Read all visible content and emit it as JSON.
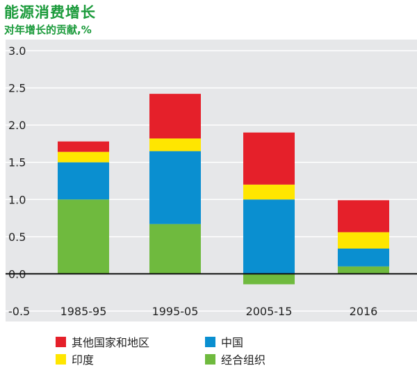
{
  "title": "能源消费增长",
  "subtitle": "对年增长的贡献,%",
  "colors": {
    "background": "#e6e7e9",
    "title": "#1a9a3a",
    "other": "#e5202a",
    "india": "#ffe600",
    "china": "#0a8fd0",
    "oecd": "#6fba3e"
  },
  "chart_data": {
    "type": "bar",
    "stacked": true,
    "title": "能源消费增长",
    "subtitle": "对年增长的贡献,%",
    "xlabel": "",
    "ylabel": "",
    "categories": [
      "1985-95",
      "1995-05",
      "2005-15",
      "2016"
    ],
    "ylim": [
      -0.5,
      3.0
    ],
    "yticks": [
      "3.0",
      "2.5",
      "2.0",
      "1.5",
      "1.0",
      "0.5",
      "0.0",
      "-0.5"
    ],
    "grid": true,
    "legend_position": "bottom",
    "series": [
      {
        "name": "经合组织",
        "key": "oecd",
        "values": [
          1.0,
          0.67,
          -0.14,
          0.1
        ]
      },
      {
        "name": "中国",
        "key": "china",
        "values": [
          0.5,
          0.98,
          1.0,
          0.24
        ]
      },
      {
        "name": "印度",
        "key": "india",
        "values": [
          0.14,
          0.17,
          0.2,
          0.22
        ]
      },
      {
        "name": "其他国家和地区",
        "key": "other",
        "values": [
          0.14,
          0.6,
          0.7,
          0.43
        ]
      }
    ]
  },
  "legend": [
    {
      "label": "其他国家和地区",
      "key": "other"
    },
    {
      "label": "中国",
      "key": "china"
    },
    {
      "label": "印度",
      "key": "india"
    },
    {
      "label": "经合组织",
      "key": "oecd"
    }
  ]
}
